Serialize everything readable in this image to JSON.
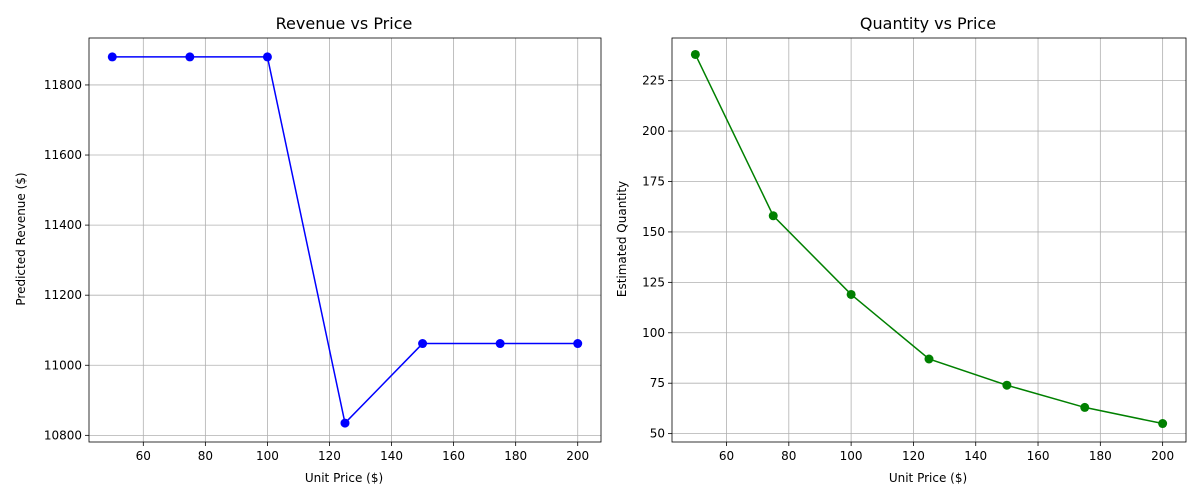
{
  "chart_data": [
    {
      "type": "line",
      "title": "Revenue vs Price",
      "xlabel": "Unit Price ($)",
      "ylabel": "Predicted Revenue ($)",
      "xlim": [
        42.5,
        207.5
      ],
      "ylim": [
        10781,
        11934
      ],
      "xticks": [
        60,
        80,
        100,
        120,
        140,
        160,
        180,
        200
      ],
      "yticks": [
        10800,
        11000,
        11200,
        11400,
        11600,
        11800
      ],
      "grid": true,
      "color": "#0000ff",
      "marker": "circle",
      "x": [
        50,
        75,
        100,
        125,
        150,
        175,
        200
      ],
      "y": [
        11880,
        11880,
        11880,
        10835,
        11062,
        11062,
        11062
      ]
    },
    {
      "type": "line",
      "title": "Quantity vs Price",
      "xlabel": "Unit Price ($)",
      "ylabel": "Estimated Quantity",
      "xlim": [
        42.5,
        207.5
      ],
      "ylim": [
        45.85,
        246.15
      ],
      "xticks": [
        60,
        80,
        100,
        120,
        140,
        160,
        180,
        200
      ],
      "yticks": [
        50,
        75,
        100,
        125,
        150,
        175,
        200,
        225
      ],
      "grid": true,
      "color": "#008000",
      "marker": "circle",
      "x": [
        50,
        75,
        100,
        125,
        150,
        175,
        200
      ],
      "y": [
        238,
        158,
        119,
        87,
        74,
        63,
        55
      ]
    }
  ]
}
